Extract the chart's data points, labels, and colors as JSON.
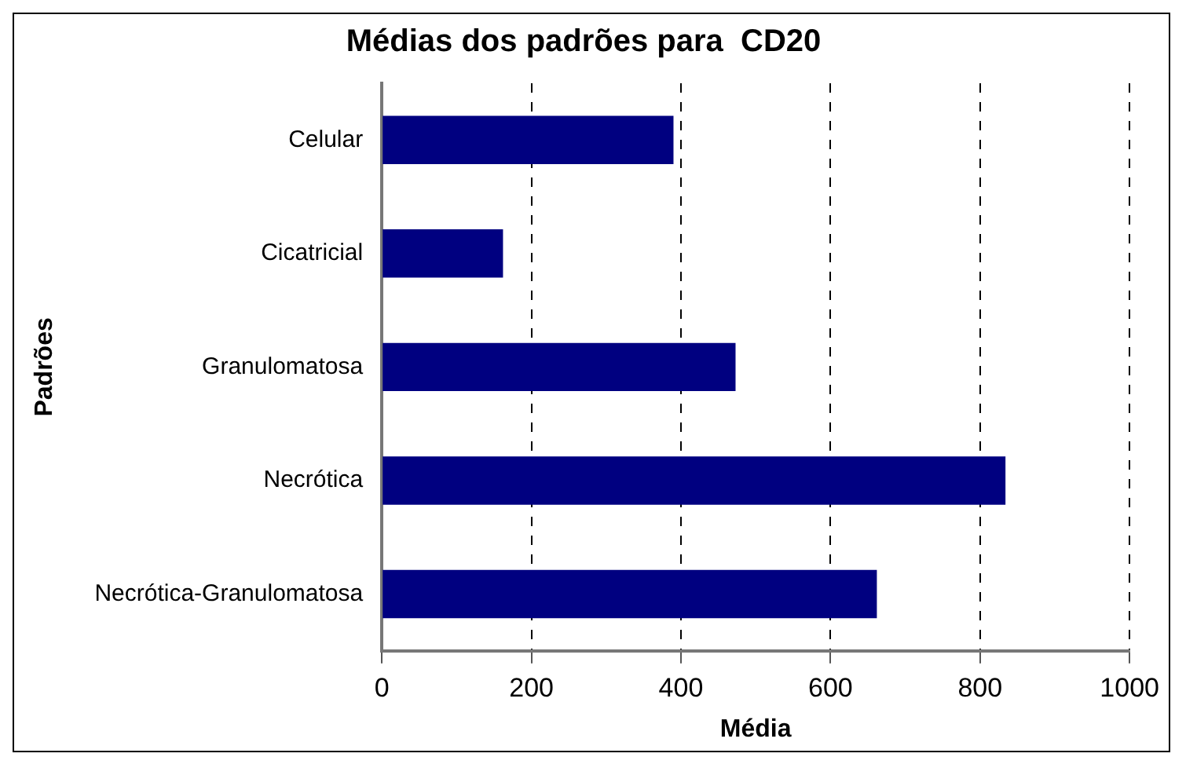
{
  "chart_data": {
    "type": "bar",
    "orientation": "horizontal",
    "title": "Médias dos padrões para  CD20",
    "xlabel": "Média",
    "ylabel": "Padrões",
    "categories": [
      "Celular",
      "Cicatricial",
      "Granulomatosa",
      "Necrótica",
      "Necrótica-Granulomatosa"
    ],
    "values": [
      390,
      162,
      473,
      834,
      662
    ],
    "color": "#000080",
    "xlim": [
      0,
      1000
    ],
    "xticks": [
      0,
      200,
      400,
      600,
      800,
      1000
    ],
    "grid": "x",
    "legend": false
  }
}
